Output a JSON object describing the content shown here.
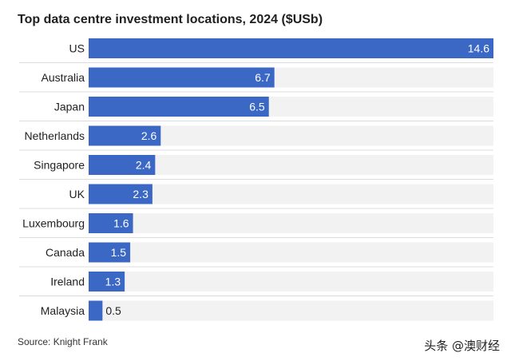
{
  "chart_data": {
    "type": "bar",
    "orientation": "horizontal",
    "title": "Top data centre investment locations, 2024 ($USb)",
    "categories": [
      "US",
      "Australia",
      "Japan",
      "Netherlands",
      "Singapore",
      "UK",
      "Luxembourg",
      "Canada",
      "Ireland",
      "Malaysia"
    ],
    "values": [
      14.6,
      6.7,
      6.5,
      2.6,
      2.4,
      2.3,
      1.6,
      1.5,
      1.3,
      0.5
    ],
    "value_labels": [
      "14.6",
      "6.7",
      "6.5",
      "2.6",
      "2.4",
      "2.3",
      "1.6",
      "1.5",
      "1.3",
      "0.5"
    ],
    "xlim": [
      0,
      14.6
    ],
    "grid": false,
    "legend": "none",
    "colors": {
      "bar": "#3a68c4",
      "track": "#f2f2f2",
      "label_inside": "#ffffff",
      "label_outside": "#222222",
      "divider": "#dcdcdc"
    }
  },
  "source": "Source: Knight Frank",
  "watermark": "头条 @澳财经"
}
